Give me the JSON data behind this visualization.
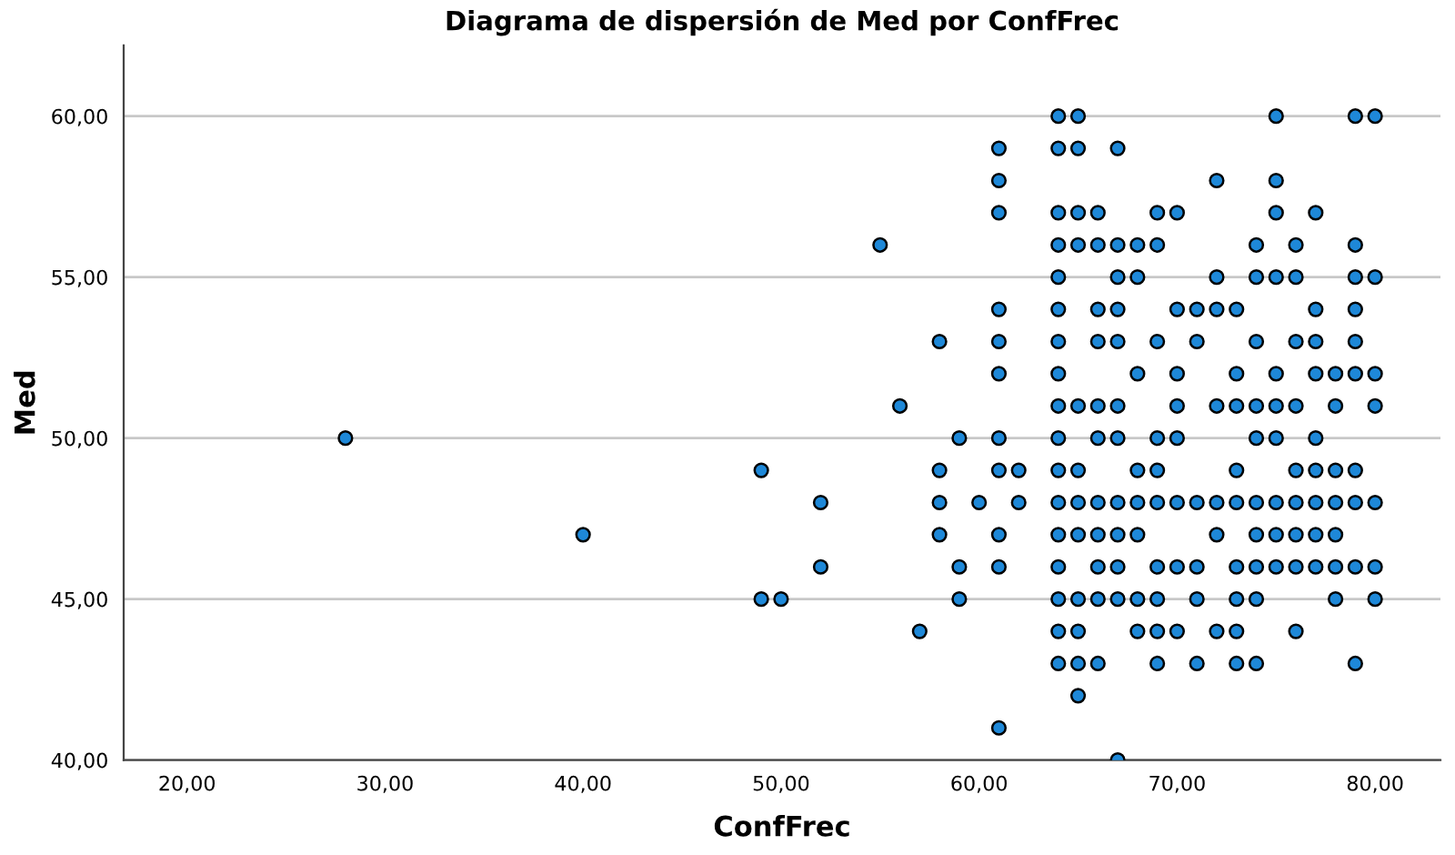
{
  "chart_data": {
    "type": "scatter",
    "title": "Diagrama de dispersión de Med por ConfFrec",
    "xlabel": "ConfFrec",
    "ylabel": "Med",
    "series": [
      {
        "color": "#1e88d8",
        "x": [
          64,
          65,
          75,
          79,
          80,
          61,
          64,
          65,
          67,
          61,
          72,
          75,
          61,
          64,
          65,
          66,
          69,
          70,
          75,
          77,
          55,
          64,
          65,
          66,
          67,
          68,
          69,
          74,
          76,
          79,
          64,
          67,
          68,
          72,
          74,
          75,
          76,
          79,
          80,
          61,
          64,
          66,
          67,
          70,
          71,
          72,
          73,
          77,
          79,
          58,
          61,
          64,
          66,
          67,
          69,
          71,
          74,
          76,
          77,
          79,
          61,
          64,
          68,
          70,
          73,
          75,
          77,
          78,
          79,
          80,
          56,
          64,
          65,
          66,
          67,
          70,
          72,
          73,
          74,
          75,
          76,
          78,
          80,
          28,
          59,
          61,
          64,
          66,
          67,
          69,
          70,
          74,
          75,
          77,
          49,
          58,
          61,
          62,
          64,
          65,
          68,
          69,
          73,
          76,
          77,
          78,
          79,
          52,
          58,
          60,
          62,
          64,
          65,
          66,
          67,
          68,
          69,
          70,
          71,
          72,
          73,
          74,
          75,
          76,
          77,
          78,
          79,
          80,
          40,
          58,
          61,
          64,
          65,
          66,
          67,
          68,
          72,
          74,
          75,
          76,
          77,
          78,
          52,
          59,
          61,
          64,
          66,
          67,
          69,
          70,
          71,
          73,
          74,
          75,
          76,
          77,
          78,
          79,
          80,
          49,
          50,
          59,
          64,
          65,
          66,
          67,
          68,
          69,
          71,
          73,
          74,
          78,
          80,
          57,
          64,
          65,
          68,
          69,
          70,
          72,
          73,
          76,
          64,
          65,
          66,
          69,
          71,
          73,
          74,
          79,
          65,
          61,
          67
        ],
        "values": [
          60,
          60,
          60,
          60,
          60,
          59,
          59,
          59,
          59,
          58,
          58,
          58,
          57,
          57,
          57,
          57,
          57,
          57,
          57,
          57,
          56,
          56,
          56,
          56,
          56,
          56,
          56,
          56,
          56,
          56,
          55,
          55,
          55,
          55,
          55,
          55,
          55,
          55,
          55,
          54,
          54,
          54,
          54,
          54,
          54,
          54,
          54,
          54,
          54,
          53,
          53,
          53,
          53,
          53,
          53,
          53,
          53,
          53,
          53,
          53,
          52,
          52,
          52,
          52,
          52,
          52,
          52,
          52,
          52,
          52,
          51,
          51,
          51,
          51,
          51,
          51,
          51,
          51,
          51,
          51,
          51,
          51,
          51,
          50,
          50,
          50,
          50,
          50,
          50,
          50,
          50,
          50,
          50,
          50,
          49,
          49,
          49,
          49,
          49,
          49,
          49,
          49,
          49,
          49,
          49,
          49,
          49,
          48,
          48,
          48,
          48,
          48,
          48,
          48,
          48,
          48,
          48,
          48,
          48,
          48,
          48,
          48,
          48,
          48,
          48,
          48,
          48,
          48,
          47,
          47,
          47,
          47,
          47,
          47,
          47,
          47,
          47,
          47,
          47,
          47,
          47,
          47,
          46,
          46,
          46,
          46,
          46,
          46,
          46,
          46,
          46,
          46,
          46,
          46,
          46,
          46,
          46,
          46,
          46,
          45,
          45,
          45,
          45,
          45,
          45,
          45,
          45,
          45,
          45,
          45,
          45,
          45,
          45,
          44,
          44,
          44,
          44,
          44,
          44,
          44,
          44,
          44,
          43,
          43,
          43,
          43,
          43,
          43,
          43,
          43,
          42,
          41,
          40
        ]
      }
    ],
    "marker": "circle",
    "grid": "y",
    "xlim": [
      16.8,
      83.3
    ],
    "ylim": [
      40,
      62.2
    ],
    "xticks": [
      {
        "value": 20,
        "label": "20,00"
      },
      {
        "value": 30,
        "label": "30,00"
      },
      {
        "value": 40,
        "label": "40,00"
      },
      {
        "value": 50,
        "label": "50,00"
      },
      {
        "value": 60,
        "label": "60,00"
      },
      {
        "value": 70,
        "label": "70,00"
      },
      {
        "value": 80,
        "label": "80,00"
      }
    ],
    "yticks": [
      {
        "value": 40,
        "label": "40,00"
      },
      {
        "value": 45,
        "label": "45,00"
      },
      {
        "value": 50,
        "label": "50,00"
      },
      {
        "value": 55,
        "label": "55,00"
      },
      {
        "value": 60,
        "label": "60,00"
      }
    ]
  }
}
